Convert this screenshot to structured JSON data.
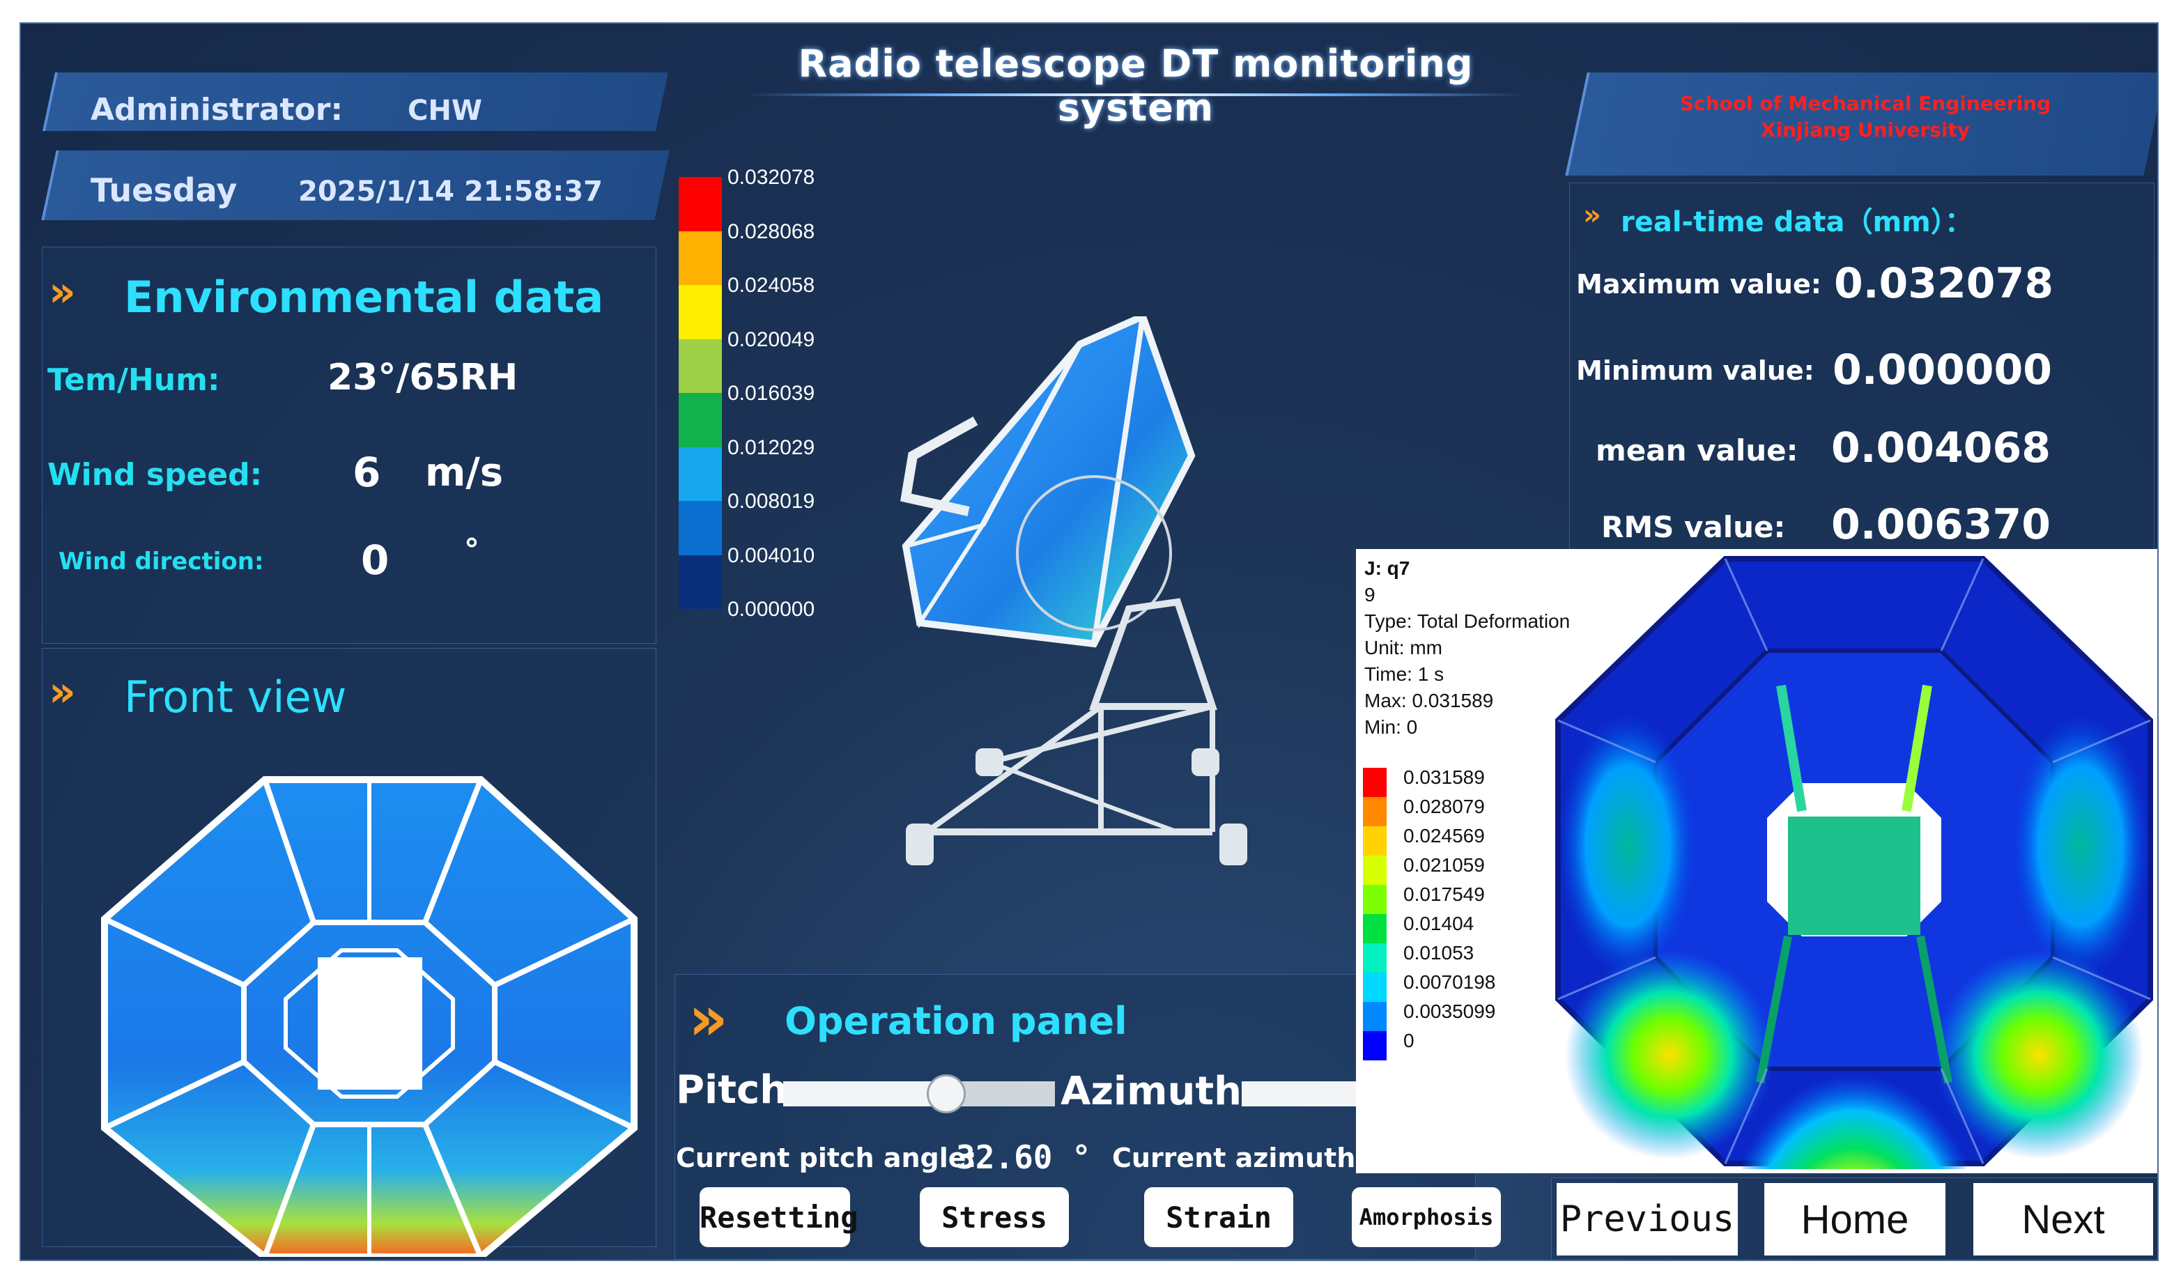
{
  "title": "Radio telescope DT monitoring system",
  "header": {
    "admin_label": "Administrator:",
    "admin_value": "CHW",
    "day_label": "Tuesday",
    "datetime": "2025/1/14 21:58:37",
    "school_line1": "School of Mechanical Engineering",
    "school_line2": "Xinjiang University"
  },
  "environment": {
    "title": "Environmental data",
    "tem_hum_label": "Tem/Hum:",
    "tem_hum_value": "23°/65RH",
    "wind_speed_label": "Wind speed:",
    "wind_speed_value": "6",
    "wind_speed_unit": "m/s",
    "wind_dir_label": "Wind direction:",
    "wind_dir_value": "0",
    "wind_dir_unit": "°"
  },
  "front_view": {
    "title": "Front view"
  },
  "legend_main": {
    "values": [
      "0.032078",
      "0.028068",
      "0.024058",
      "0.020049",
      "0.016039",
      "0.012029",
      "0.008019",
      "0.004010",
      "0.000000"
    ],
    "colors": [
      "#ff0000",
      "#ffb000",
      "#ffee00",
      "#9ed047",
      "#11b24c",
      "#17a7ee",
      "#0b6fd0",
      "#0a2f7a"
    ]
  },
  "realtime": {
    "title": "real-time data（mm）：",
    "max_label": "Maximum value:",
    "max_value": "0.032078",
    "min_label": "Minimum value:",
    "min_value": "0.000000",
    "mean_label": "mean value:",
    "mean_value": "0.004068",
    "rms_label": "RMS value:",
    "rms_value": "0.006370"
  },
  "operation": {
    "title": "Operation panel",
    "pitch_label": "Pitch",
    "azimuth_label": "Azimuth",
    "pitch_slider_level": 0.6,
    "pitch_angle_label": "Current pitch angle:",
    "pitch_angle_value": "32.60 °",
    "azimuth_angle_label": "Current azimuth:",
    "buttons": [
      "Resetting",
      "Stress",
      "Strain",
      "Amorphosis"
    ]
  },
  "fem": {
    "line1": "J: q7",
    "line2": "9",
    "line3": "Type: Total Deformation",
    "line4": "Unit: mm",
    "line5": "Time: 1 s",
    "line6": "Max: 0.031589",
    "line7": "Min: 0",
    "legend_values": [
      "0.031589",
      "0.028079",
      "0.024569",
      "0.021059",
      "0.017549",
      "0.01404",
      "0.01053",
      "0.0070198",
      "0.0035099",
      "0"
    ],
    "legend_colors": [
      "#ff0000",
      "#ff8a00",
      "#ffd200",
      "#d8ff00",
      "#7dff00",
      "#00e040",
      "#00f0c0",
      "#00d8ff",
      "#0088ff",
      "#0000ff"
    ]
  },
  "nav": {
    "previous": "Previous",
    "home": "Home",
    "next": "Next"
  }
}
